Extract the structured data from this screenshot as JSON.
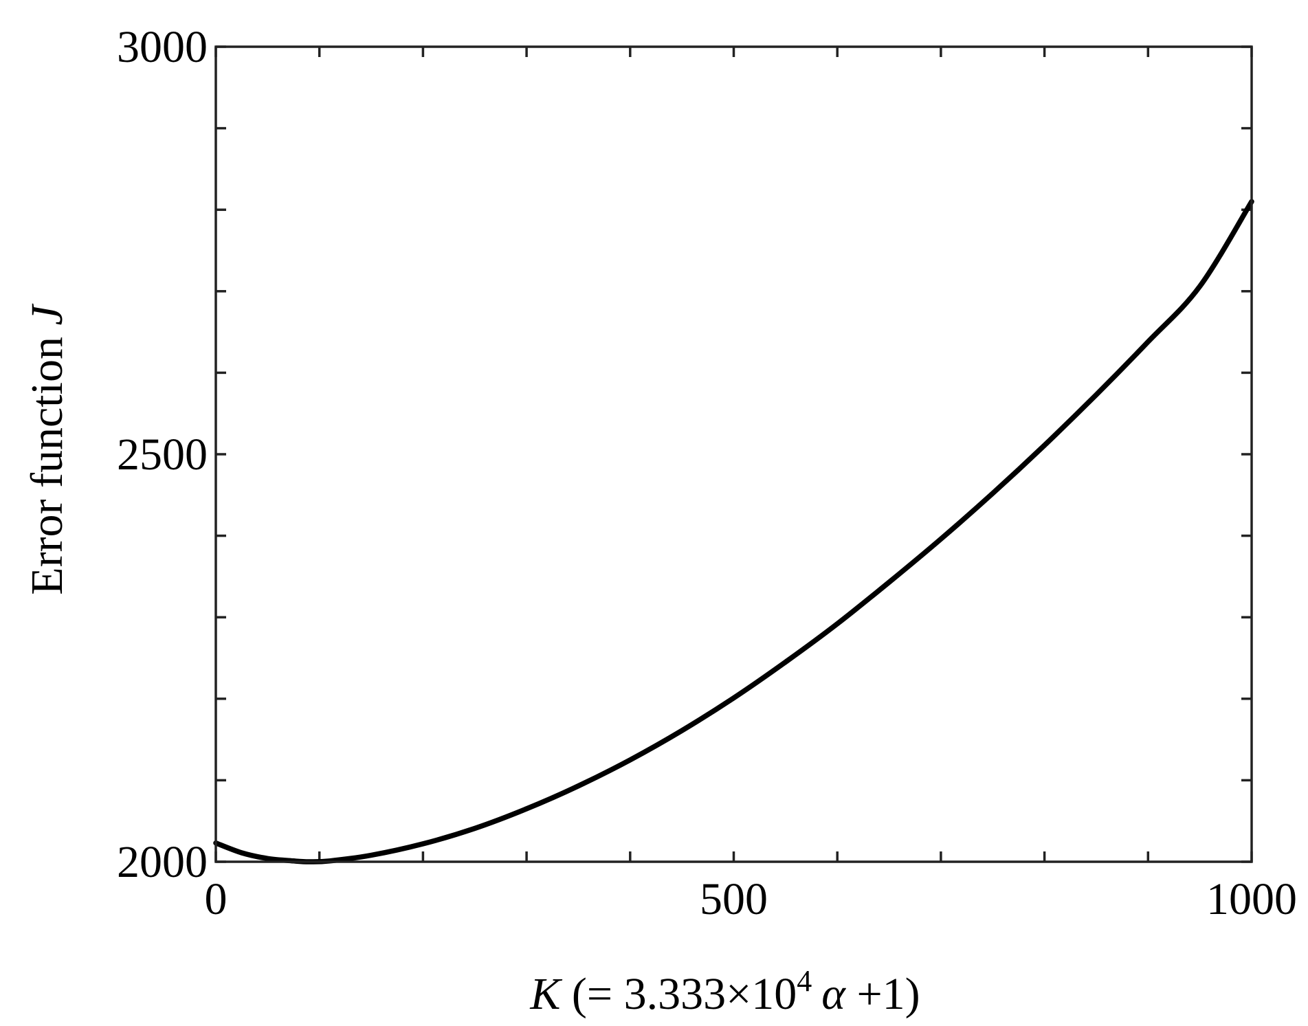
{
  "chart_data": {
    "type": "line",
    "title": "",
    "xlabel": {
      "var": "K",
      "open": " (= 3.333×10",
      "exp": "4",
      "sym": "α",
      "close": " +1)"
    },
    "ylabel": {
      "text": "Error function ",
      "var": "J"
    },
    "xlim": [
      0,
      1000
    ],
    "ylim": [
      2000,
      3000
    ],
    "x_tick_labels": [
      "0",
      "500",
      "1000"
    ],
    "x_tick_values": [
      0,
      500,
      1000
    ],
    "x_minor_tick_values": [
      0,
      100,
      200,
      300,
      400,
      500,
      600,
      700,
      800,
      900,
      1000
    ],
    "y_tick_labels": [
      "2000",
      "2500",
      "3000"
    ],
    "y_tick_values": [
      2000,
      2500,
      3000
    ],
    "y_minor_tick_values": [
      2000,
      2100,
      2200,
      2300,
      2400,
      2500,
      2600,
      2700,
      2800,
      2900,
      3000
    ],
    "grid": false,
    "series": [
      {
        "name": "",
        "color": "#000000",
        "x": [
          0,
          25,
          50,
          75,
          90,
          110,
          150,
          200,
          250,
          300,
          350,
          400,
          450,
          500,
          550,
          600,
          650,
          700,
          750,
          800,
          850,
          900,
          950,
          1000
        ],
        "y": [
          2023,
          2011,
          2004,
          2001,
          2000,
          2001,
          2008,
          2022,
          2041,
          2065,
          2093,
          2125,
          2161,
          2201,
          2245,
          2292,
          2343,
          2396,
          2452,
          2511,
          2573,
          2638,
          2706,
          2810
        ]
      }
    ]
  }
}
